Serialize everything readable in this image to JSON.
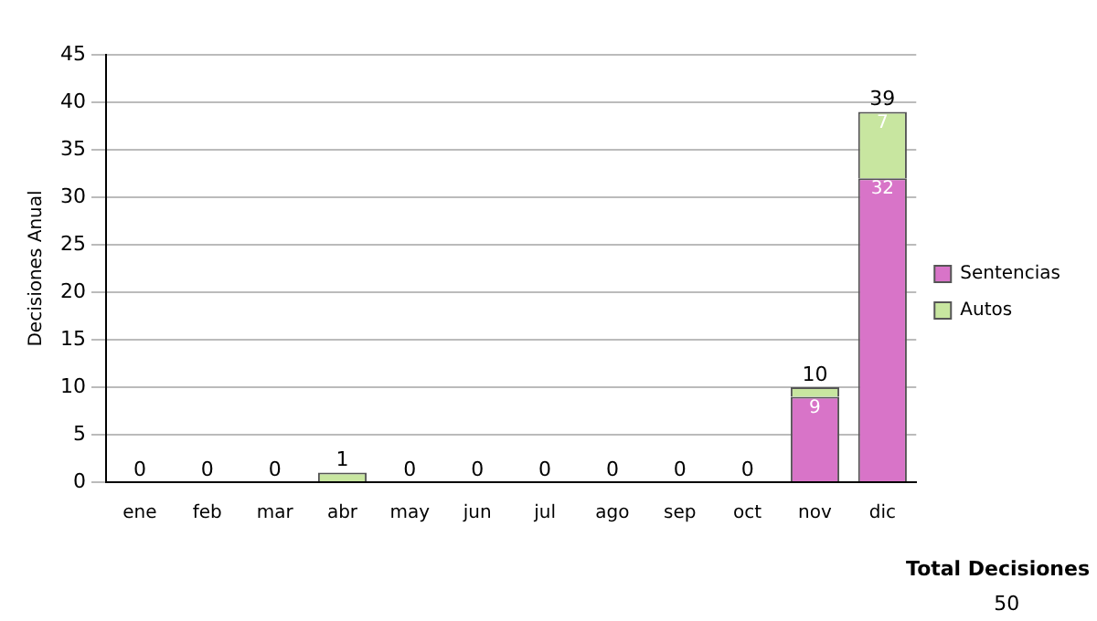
{
  "chart_data": {
    "type": "bar",
    "stacked": true,
    "ylabel": "Decisiones Anual",
    "categories": [
      "ene",
      "feb",
      "mar",
      "abr",
      "may",
      "jun",
      "jul",
      "ago",
      "sep",
      "oct",
      "nov",
      "dic"
    ],
    "series": [
      {
        "name": "Sentencias",
        "color": "#d874c8",
        "values": [
          0,
          0,
          0,
          0,
          0,
          0,
          0,
          0,
          0,
          0,
          9,
          32
        ],
        "value_labels": [
          null,
          null,
          null,
          null,
          null,
          null,
          null,
          null,
          null,
          null,
          "9",
          "32"
        ]
      },
      {
        "name": "Autos",
        "color": "#c8e6a0",
        "values": [
          0,
          0,
          0,
          1,
          0,
          0,
          0,
          0,
          0,
          0,
          1,
          7
        ],
        "value_labels": [
          null,
          null,
          null,
          null,
          null,
          null,
          null,
          null,
          null,
          null,
          null,
          "7"
        ]
      }
    ],
    "totals": [
      "0",
      "0",
      "0",
      "1",
      "0",
      "0",
      "0",
      "0",
      "0",
      "0",
      "10",
      "39"
    ],
    "ylim": [
      0,
      45
    ],
    "yticks": [
      0,
      5,
      10,
      15,
      20,
      25,
      30,
      35,
      40,
      45
    ],
    "grid": "y",
    "legend": "right",
    "annotations": [
      "Total Decisiones",
      "50"
    ]
  }
}
